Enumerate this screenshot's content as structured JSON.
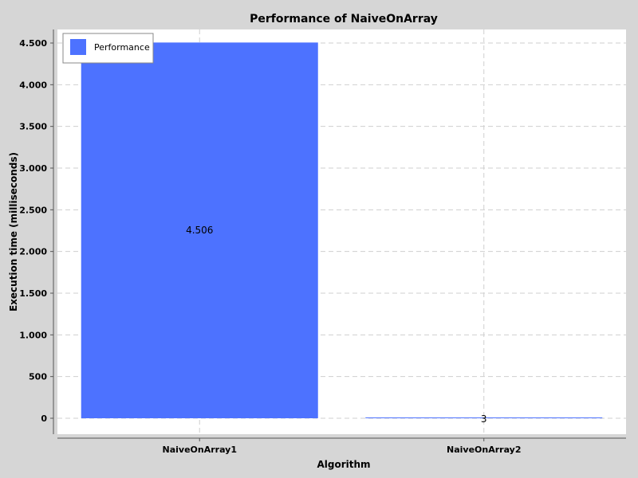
{
  "chart_data": {
    "type": "bar",
    "title": "Performance of NaiveOnArray",
    "xlabel": "Algorithm",
    "ylabel": "Execution time (milliseconds)",
    "categories": [
      "NaiveOnArray1",
      "NaiveOnArray2"
    ],
    "series": [
      {
        "name": "Performance",
        "values": [
          4506,
          3
        ],
        "color": "#4d72ff"
      }
    ],
    "data_labels": [
      "4.506",
      "3"
    ],
    "ylim": [
      0,
      4700
    ],
    "yticks": [
      0,
      500,
      1000,
      1500,
      2000,
      2500,
      3000,
      3500,
      4000,
      4500
    ],
    "ytick_labels": [
      "0",
      "500",
      "1.000",
      "1.500",
      "2.000",
      "2.500",
      "3.000",
      "3.500",
      "4.000",
      "4.500"
    ],
    "grid": true,
    "legend_position": "top-left",
    "background_color": "#ffffff",
    "outer_background_color": "#d6d6d6",
    "grid_color": "#cfcfcf"
  }
}
